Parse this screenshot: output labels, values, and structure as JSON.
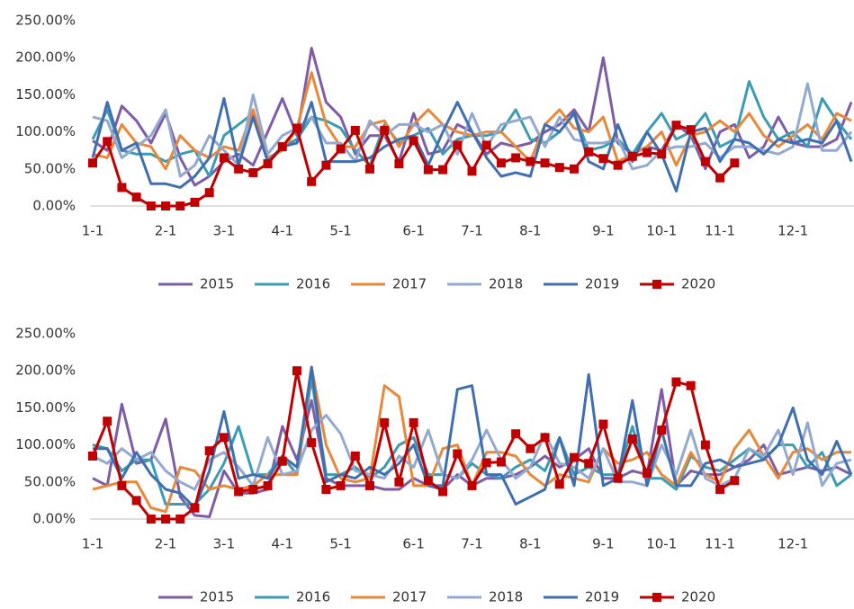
{
  "chart_data": [
    {
      "type": "line",
      "categories": [
        "1-1",
        null,
        null,
        null,
        null,
        "2-1",
        null,
        null,
        null,
        "3-1",
        null,
        null,
        null,
        "4-1",
        null,
        null,
        null,
        "5-1",
        null,
        null,
        null,
        null,
        "6-1",
        null,
        null,
        null,
        "7-1",
        null,
        null,
        null,
        "8-1",
        null,
        null,
        null,
        null,
        "9-1",
        null,
        null,
        null,
        "10-1",
        null,
        null,
        null,
        "11-1",
        null,
        null,
        null,
        null,
        "12-1",
        null,
        null,
        null,
        null
      ],
      "ylim": [
        0,
        250
      ],
      "yticks": [
        {
          "value": 0,
          "label": "0.00%"
        },
        {
          "value": 50,
          "label": "50.00%"
        },
        {
          "value": 100,
          "label": "100.00%"
        },
        {
          "value": 150,
          "label": "150.00%"
        },
        {
          "value": 200,
          "label": "200.00%"
        },
        {
          "value": 250,
          "label": "250.00%"
        }
      ],
      "legend": "bottom",
      "series": [
        {
          "name": "2015",
          "color": "#7e5ca6",
          "values": [
            88,
            75,
            135,
            115,
            85,
            125,
            65,
            28,
            40,
            60,
            70,
            55,
            100,
            145,
            95,
            213,
            140,
            120,
            70,
            95,
            95,
            60,
            125,
            70,
            75,
            110,
            100,
            70,
            85,
            80,
            85,
            100,
            110,
            130,
            100,
            200,
            85,
            70,
            80,
            75,
            110,
            95,
            50,
            100,
            110,
            65,
            80,
            120,
            85,
            80,
            80,
            90,
            140
          ]
        },
        {
          "name": "2016",
          "color": "#3c9cb4",
          "values": [
            90,
            130,
            75,
            70,
            70,
            60,
            70,
            75,
            40,
            95,
            110,
            125,
            60,
            80,
            90,
            120,
            115,
            105,
            75,
            55,
            110,
            85,
            95,
            105,
            70,
            90,
            95,
            95,
            100,
            130,
            90,
            85,
            100,
            125,
            75,
            80,
            90,
            70,
            100,
            125,
            90,
            100,
            125,
            80,
            90,
            168,
            120,
            90,
            100,
            80,
            145,
            115,
            90
          ]
        },
        {
          "name": "2017",
          "color": "#e8883a",
          "values": [
            70,
            65,
            110,
            85,
            80,
            50,
            95,
            75,
            65,
            80,
            75,
            130,
            65,
            75,
            105,
            180,
            110,
            80,
            80,
            110,
            115,
            80,
            110,
            130,
            110,
            100,
            95,
            100,
            100,
            80,
            60,
            110,
            130,
            105,
            100,
            120,
            60,
            70,
            80,
            100,
            55,
            95,
            100,
            115,
            100,
            125,
            95,
            80,
            95,
            110,
            90,
            125,
            115
          ]
        },
        {
          "name": "2018",
          "color": "#93a9cf",
          "values": [
            120,
            115,
            65,
            80,
            95,
            130,
            40,
            55,
            95,
            75,
            55,
            150,
            70,
            95,
            105,
            120,
            85,
            85,
            60,
            115,
            95,
            110,
            110,
            100,
            110,
            70,
            125,
            80,
            110,
            115,
            120,
            80,
            120,
            90,
            85,
            85,
            90,
            50,
            55,
            75,
            80,
            80,
            85,
            65,
            80,
            80,
            75,
            70,
            80,
            165,
            75,
            75,
            100
          ]
        },
        {
          "name": "2019",
          "color": "#3f6fb0",
          "values": [
            65,
            140,
            75,
            85,
            30,
            30,
            25,
            40,
            65,
            145,
            55,
            120,
            60,
            80,
            85,
            140,
            60,
            60,
            60,
            65,
            80,
            90,
            95,
            55,
            100,
            140,
            100,
            65,
            40,
            45,
            40,
            110,
            100,
            125,
            60,
            50,
            110,
            60,
            100,
            70,
            20,
            100,
            105,
            60,
            90,
            85,
            70,
            90,
            85,
            90,
            85,
            115,
            60
          ]
        },
        {
          "name": "2020",
          "color": "#c00000",
          "marker": "square",
          "values": [
            58,
            87,
            25,
            12,
            0,
            0,
            0,
            5,
            18,
            65,
            50,
            45,
            57,
            80,
            105,
            33,
            55,
            77,
            102,
            50,
            102,
            57,
            88,
            49,
            49,
            82,
            47,
            82,
            58,
            65,
            60,
            58,
            52,
            50,
            73,
            64,
            55,
            67,
            72,
            70,
            109,
            103,
            60,
            38,
            58,
            null,
            null,
            null,
            null,
            null,
            null,
            null,
            null
          ]
        }
      ]
    },
    {
      "type": "line",
      "categories": [
        "1-1",
        null,
        null,
        null,
        null,
        "2-1",
        null,
        null,
        null,
        "3-1",
        null,
        null,
        null,
        "4-1",
        null,
        null,
        null,
        "5-1",
        null,
        null,
        null,
        null,
        "6-1",
        null,
        null,
        null,
        "7-1",
        null,
        null,
        null,
        "8-1",
        null,
        null,
        null,
        null,
        "9-1",
        null,
        null,
        null,
        "10-1",
        null,
        null,
        null,
        "11-1",
        null,
        null,
        null,
        null,
        "12-1",
        null,
        null,
        null,
        null
      ],
      "ylim": [
        0,
        250
      ],
      "yticks": [
        {
          "value": 0,
          "label": "0.00%"
        },
        {
          "value": 50,
          "label": "50.00%"
        },
        {
          "value": 100,
          "label": "100.00%"
        },
        {
          "value": 150,
          "label": "150.00%"
        },
        {
          "value": 200,
          "label": "200.00%"
        },
        {
          "value": 250,
          "label": "250.00%"
        }
      ],
      "legend": "bottom",
      "series": [
        {
          "name": "2015",
          "color": "#7e5ca6",
          "values": [
            55,
            45,
            155,
            75,
            80,
            135,
            30,
            5,
            3,
            65,
            35,
            35,
            40,
            125,
            80,
            160,
            55,
            45,
            45,
            45,
            40,
            40,
            55,
            45,
            40,
            60,
            45,
            55,
            55,
            60,
            70,
            85,
            70,
            80,
            95,
            55,
            55,
            65,
            60,
            175,
            45,
            65,
            60,
            60,
            70,
            80,
            100,
            60,
            65,
            70,
            65,
            70,
            60
          ]
        },
        {
          "name": "2016",
          "color": "#3c9cb4",
          "values": [
            100,
            95,
            65,
            80,
            80,
            20,
            20,
            20,
            40,
            75,
            125,
            60,
            60,
            85,
            60,
            190,
            60,
            60,
            70,
            55,
            70,
            100,
            110,
            60,
            60,
            55,
            75,
            60,
            55,
            70,
            80,
            65,
            110,
            60,
            70,
            60,
            60,
            125,
            55,
            55,
            40,
            85,
            70,
            65,
            80,
            95,
            80,
            100,
            100,
            70,
            90,
            45,
            60
          ]
        },
        {
          "name": "2017",
          "color": "#e8883a",
          "values": [
            40,
            45,
            50,
            50,
            15,
            10,
            70,
            65,
            40,
            45,
            40,
            45,
            60,
            60,
            60,
            205,
            100,
            55,
            50,
            55,
            180,
            165,
            45,
            45,
            95,
            100,
            45,
            90,
            90,
            85,
            60,
            45,
            60,
            55,
            50,
            95,
            75,
            80,
            90,
            60,
            45,
            90,
            60,
            50,
            95,
            120,
            85,
            55,
            90,
            95,
            80,
            90,
            90
          ]
        },
        {
          "name": "2018",
          "color": "#93a9cf",
          "values": [
            85,
            75,
            95,
            80,
            90,
            65,
            50,
            40,
            80,
            90,
            70,
            45,
            110,
            60,
            65,
            120,
            140,
            115,
            65,
            60,
            55,
            85,
            70,
            120,
            60,
            55,
            80,
            120,
            80,
            55,
            70,
            115,
            75,
            70,
            55,
            95,
            50,
            50,
            45,
            100,
            60,
            120,
            55,
            45,
            55,
            95,
            85,
            120,
            60,
            130,
            45,
            75,
            80
          ]
        },
        {
          "name": "2019",
          "color": "#3f6fb0",
          "values": [
            95,
            95,
            55,
            90,
            60,
            40,
            35,
            15,
            65,
            145,
            55,
            60,
            55,
            85,
            70,
            205,
            50,
            60,
            55,
            70,
            60,
            75,
            100,
            45,
            45,
            175,
            180,
            60,
            60,
            20,
            30,
            40,
            110,
            45,
            195,
            45,
            55,
            160,
            45,
            120,
            45,
            45,
            75,
            80,
            70,
            75,
            80,
            100,
            150,
            80,
            60,
            105,
            60
          ]
        },
        {
          "name": "2020",
          "color": "#c00000",
          "marker": "square",
          "values": [
            85,
            132,
            45,
            25,
            0,
            0,
            0,
            15,
            92,
            110,
            37,
            40,
            45,
            78,
            200,
            103,
            40,
            45,
            85,
            45,
            130,
            50,
            130,
            52,
            37,
            88,
            45,
            76,
            77,
            115,
            95,
            110,
            47,
            83,
            75,
            128,
            55,
            108,
            62,
            120,
            185,
            180,
            100,
            40,
            52,
            null,
            null,
            null,
            null,
            null,
            null,
            null,
            null
          ]
        }
      ]
    }
  ]
}
